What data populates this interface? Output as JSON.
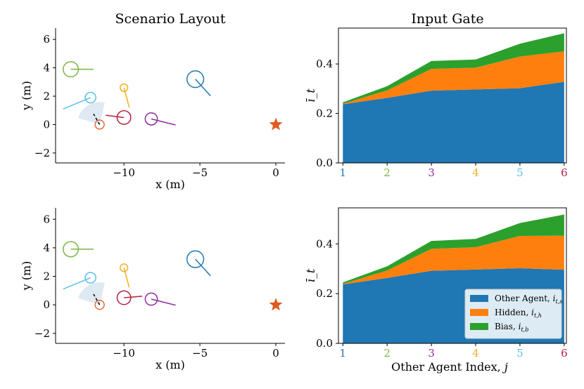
{
  "titles": {
    "layout": "Scenario Layout",
    "gate": "Input Gate"
  },
  "layout_axes": {
    "xlabel": "x (m)",
    "ylabel": "y (m)",
    "xticks": [
      -10,
      -5,
      0
    ],
    "xtick_labels": [
      "−10",
      "−5",
      "0"
    ],
    "yticks": [
      -2,
      0,
      2,
      4,
      6
    ],
    "ytick_labels": [
      "−2",
      "0",
      "2",
      "4",
      "6"
    ],
    "xlim": [
      -14.5,
      0.6
    ],
    "ylim": [
      -2.7,
      6.8
    ]
  },
  "gate_axes": {
    "ylabel": "ī_t",
    "xlabel": "Other Agent Index, j",
    "xticks": [
      1,
      2,
      3,
      4,
      5,
      6
    ],
    "yticks": [
      0.0,
      0.2,
      0.4
    ],
    "ytick_labels": [
      "0.0",
      "0.2",
      "0.4"
    ],
    "xlim": [
      0.9,
      6.05
    ],
    "ylim": [
      0,
      0.545
    ]
  },
  "legend": [
    {
      "label": "Other Agent, i_{t,s}",
      "main": "Other Agent, ",
      "sym": "i",
      "sub": "t,s",
      "color": "#1f77b4"
    },
    {
      "label": "Hidden, i_{t,h}",
      "main": "Hidden, ",
      "sym": "i",
      "sub": "t,h",
      "color": "#ff7f0e"
    },
    {
      "label": "Bias, i_{t,b}",
      "main": "Bias, ",
      "sym": "i",
      "sub": "t,b",
      "color": "#2ca02c"
    }
  ],
  "goal": {
    "x": 0,
    "y": 0,
    "color": "#e05a1f"
  },
  "ego": {
    "x": -11.6,
    "y": 0.0,
    "color": "#e05a1f",
    "radius": 0.3,
    "heading_end": [
      -12.0,
      0.75
    ],
    "cone_color": "#dbe7f2"
  },
  "chart_data": [
    {
      "type": "scatter",
      "title": "Scenario Layout",
      "panel": "top",
      "xlabel": "x (m)",
      "ylabel": "y (m)",
      "xlim": [
        -14.5,
        0.6
      ],
      "ylim": [
        -2.7,
        6.8
      ],
      "agents": [
        {
          "index": 1,
          "color": "#1f77b4",
          "x": -5.3,
          "y": 3.2,
          "radius": 0.55,
          "vx": 1.0,
          "vy": -1.1
        },
        {
          "index": 2,
          "color": "#7cb342",
          "x": -13.5,
          "y": 3.9,
          "radius": 0.5,
          "vx": 1.5,
          "vy": 0.0
        },
        {
          "index": 3,
          "color": "#8e2c9e",
          "x": -8.2,
          "y": 0.4,
          "radius": 0.4,
          "vx": 1.6,
          "vy": -0.4
        },
        {
          "index": 4,
          "color": "#f2b01e",
          "x": -10.0,
          "y": 2.6,
          "radius": 0.25,
          "vx": 0.35,
          "vy": -1.3
        },
        {
          "index": 5,
          "color": "#5bc0e8",
          "x": -12.2,
          "y": 1.9,
          "radius": 0.35,
          "vx": -1.8,
          "vy": -0.75
        },
        {
          "index": 6,
          "color": "#b5203c",
          "x": -10.0,
          "y": 0.5,
          "radius": 0.45,
          "vx": -1.2,
          "vy": 0.15
        }
      ]
    },
    {
      "type": "area",
      "title": "Input Gate",
      "panel": "top",
      "categories": [
        1,
        2,
        3,
        4,
        5,
        6
      ],
      "series": [
        {
          "name": "Other Agent, i_{t,s}",
          "color": "#1f77b4",
          "values": [
            0.237,
            0.263,
            0.292,
            0.297,
            0.302,
            0.328
          ]
        },
        {
          "name": "Hidden, i_{t,h}",
          "color": "#ff7f0e",
          "values": [
            0.002,
            0.03,
            0.088,
            0.088,
            0.128,
            0.123
          ]
        },
        {
          "name": "Bias, i_{t,b}",
          "color": "#2ca02c",
          "values": [
            0.006,
            0.017,
            0.032,
            0.033,
            0.052,
            0.073
          ]
        }
      ],
      "ylabel": "ī_t",
      "ylim": [
        0,
        0.545
      ]
    },
    {
      "type": "scatter",
      "title": "",
      "panel": "bottom",
      "xlabel": "x (m)",
      "ylabel": "y (m)",
      "xlim": [
        -14.5,
        0.6
      ],
      "ylim": [
        -2.7,
        6.8
      ],
      "agents": [
        {
          "index": 1,
          "color": "#1f77b4",
          "x": -5.3,
          "y": 3.2,
          "radius": 0.55,
          "vx": 1.0,
          "vy": -1.1
        },
        {
          "index": 2,
          "color": "#7cb342",
          "x": -13.5,
          "y": 3.9,
          "radius": 0.5,
          "vx": 1.5,
          "vy": 0.0
        },
        {
          "index": 3,
          "color": "#8e2c9e",
          "x": -8.2,
          "y": 0.4,
          "radius": 0.4,
          "vx": 1.6,
          "vy": -0.4
        },
        {
          "index": 4,
          "color": "#f2b01e",
          "x": -10.0,
          "y": 2.6,
          "radius": 0.25,
          "vx": 0.35,
          "vy": -1.3
        },
        {
          "index": 5,
          "color": "#5bc0e8",
          "x": -12.2,
          "y": 1.9,
          "radius": 0.35,
          "vx": -1.8,
          "vy": -0.75
        },
        {
          "index": 6,
          "color": "#b5203c",
          "x": -10.0,
          "y": 0.5,
          "radius": 0.45,
          "vx": 1.2,
          "vy": 0.1
        }
      ]
    },
    {
      "type": "area",
      "title": "",
      "panel": "bottom",
      "categories": [
        1,
        2,
        3,
        4,
        5,
        6
      ],
      "series": [
        {
          "name": "Other Agent, i_{t,s}",
          "color": "#1f77b4",
          "values": [
            0.237,
            0.263,
            0.292,
            0.297,
            0.302,
            0.296
          ]
        },
        {
          "name": "Hidden, i_{t,h}",
          "color": "#ff7f0e",
          "values": [
            0.002,
            0.03,
            0.088,
            0.09,
            0.13,
            0.137
          ]
        },
        {
          "name": "Bias, i_{t,b}",
          "color": "#2ca02c",
          "values": [
            0.006,
            0.017,
            0.032,
            0.033,
            0.052,
            0.085
          ]
        }
      ],
      "xlabel": "Other Agent Index, j",
      "ylabel": "ī_t",
      "ylim": [
        0,
        0.545
      ]
    }
  ]
}
